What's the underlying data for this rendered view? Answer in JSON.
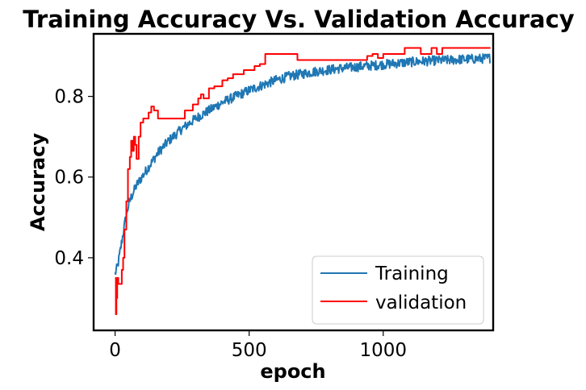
{
  "chart_data": {
    "type": "line",
    "title": "Training Accuracy Vs. Validation Accuracy",
    "xlabel": "epoch",
    "ylabel": "Accuracy",
    "xlim": [
      -80,
      1410
    ],
    "ylim": [
      0.22,
      0.955
    ],
    "xticks": [
      0,
      500,
      1000
    ],
    "xtick_labels": [
      "0",
      "500",
      "1000"
    ],
    "yticks": [
      0.4,
      0.6,
      0.8
    ],
    "ytick_labels": [
      "0.4",
      "0.6",
      "0.8"
    ],
    "grid": false,
    "legend_position": "lower-right",
    "series": [
      {
        "name": "Training",
        "color": "#1f77b4",
        "style": "noisy-curve",
        "x": [
          0,
          10,
          20,
          30,
          40,
          50,
          60,
          80,
          100,
          130,
          160,
          200,
          250,
          300,
          350,
          400,
          450,
          500,
          550,
          600,
          650,
          700,
          750,
          800,
          850,
          900,
          950,
          1000,
          1050,
          1100,
          1150,
          1200,
          1250,
          1300,
          1350,
          1400
        ],
        "values": [
          0.36,
          0.38,
          0.42,
          0.46,
          0.5,
          0.53,
          0.55,
          0.58,
          0.6,
          0.63,
          0.66,
          0.69,
          0.72,
          0.745,
          0.765,
          0.785,
          0.8,
          0.815,
          0.828,
          0.84,
          0.85,
          0.856,
          0.862,
          0.866,
          0.87,
          0.873,
          0.876,
          0.879,
          0.882,
          0.885,
          0.887,
          0.889,
          0.89,
          0.892,
          0.893,
          0.895
        ],
        "noise": 0.012
      },
      {
        "name": "validation",
        "color": "#ff0000",
        "style": "steps",
        "x": [
          0,
          3,
          5,
          8,
          12,
          18,
          25,
          30,
          35,
          42,
          48,
          55,
          60,
          65,
          70,
          75,
          80,
          88,
          95,
          105,
          115,
          125,
          135,
          145,
          160,
          180,
          200,
          230,
          260,
          290,
          310,
          320,
          330,
          350,
          370,
          400,
          420,
          440,
          460,
          480,
          500,
          520,
          540,
          560,
          580,
          640,
          680,
          720,
          780,
          840,
          900,
          940,
          960,
          980,
          1000,
          1040,
          1080,
          1120,
          1140,
          1160,
          1180,
          1200,
          1220,
          1260,
          1300,
          1350,
          1400
        ],
        "values": [
          0.35,
          0.26,
          0.3,
          0.35,
          0.335,
          0.335,
          0.37,
          0.4,
          0.47,
          0.54,
          0.62,
          0.65,
          0.69,
          0.665,
          0.7,
          0.68,
          0.645,
          0.7,
          0.735,
          0.745,
          0.745,
          0.76,
          0.775,
          0.765,
          0.745,
          0.745,
          0.745,
          0.745,
          0.765,
          0.78,
          0.795,
          0.805,
          0.795,
          0.82,
          0.825,
          0.84,
          0.845,
          0.855,
          0.855,
          0.865,
          0.865,
          0.875,
          0.88,
          0.905,
          0.905,
          0.905,
          0.89,
          0.89,
          0.89,
          0.89,
          0.89,
          0.9,
          0.905,
          0.895,
          0.905,
          0.905,
          0.92,
          0.92,
          0.905,
          0.905,
          0.92,
          0.905,
          0.92,
          0.92,
          0.92,
          0.92,
          0.92
        ]
      }
    ]
  }
}
